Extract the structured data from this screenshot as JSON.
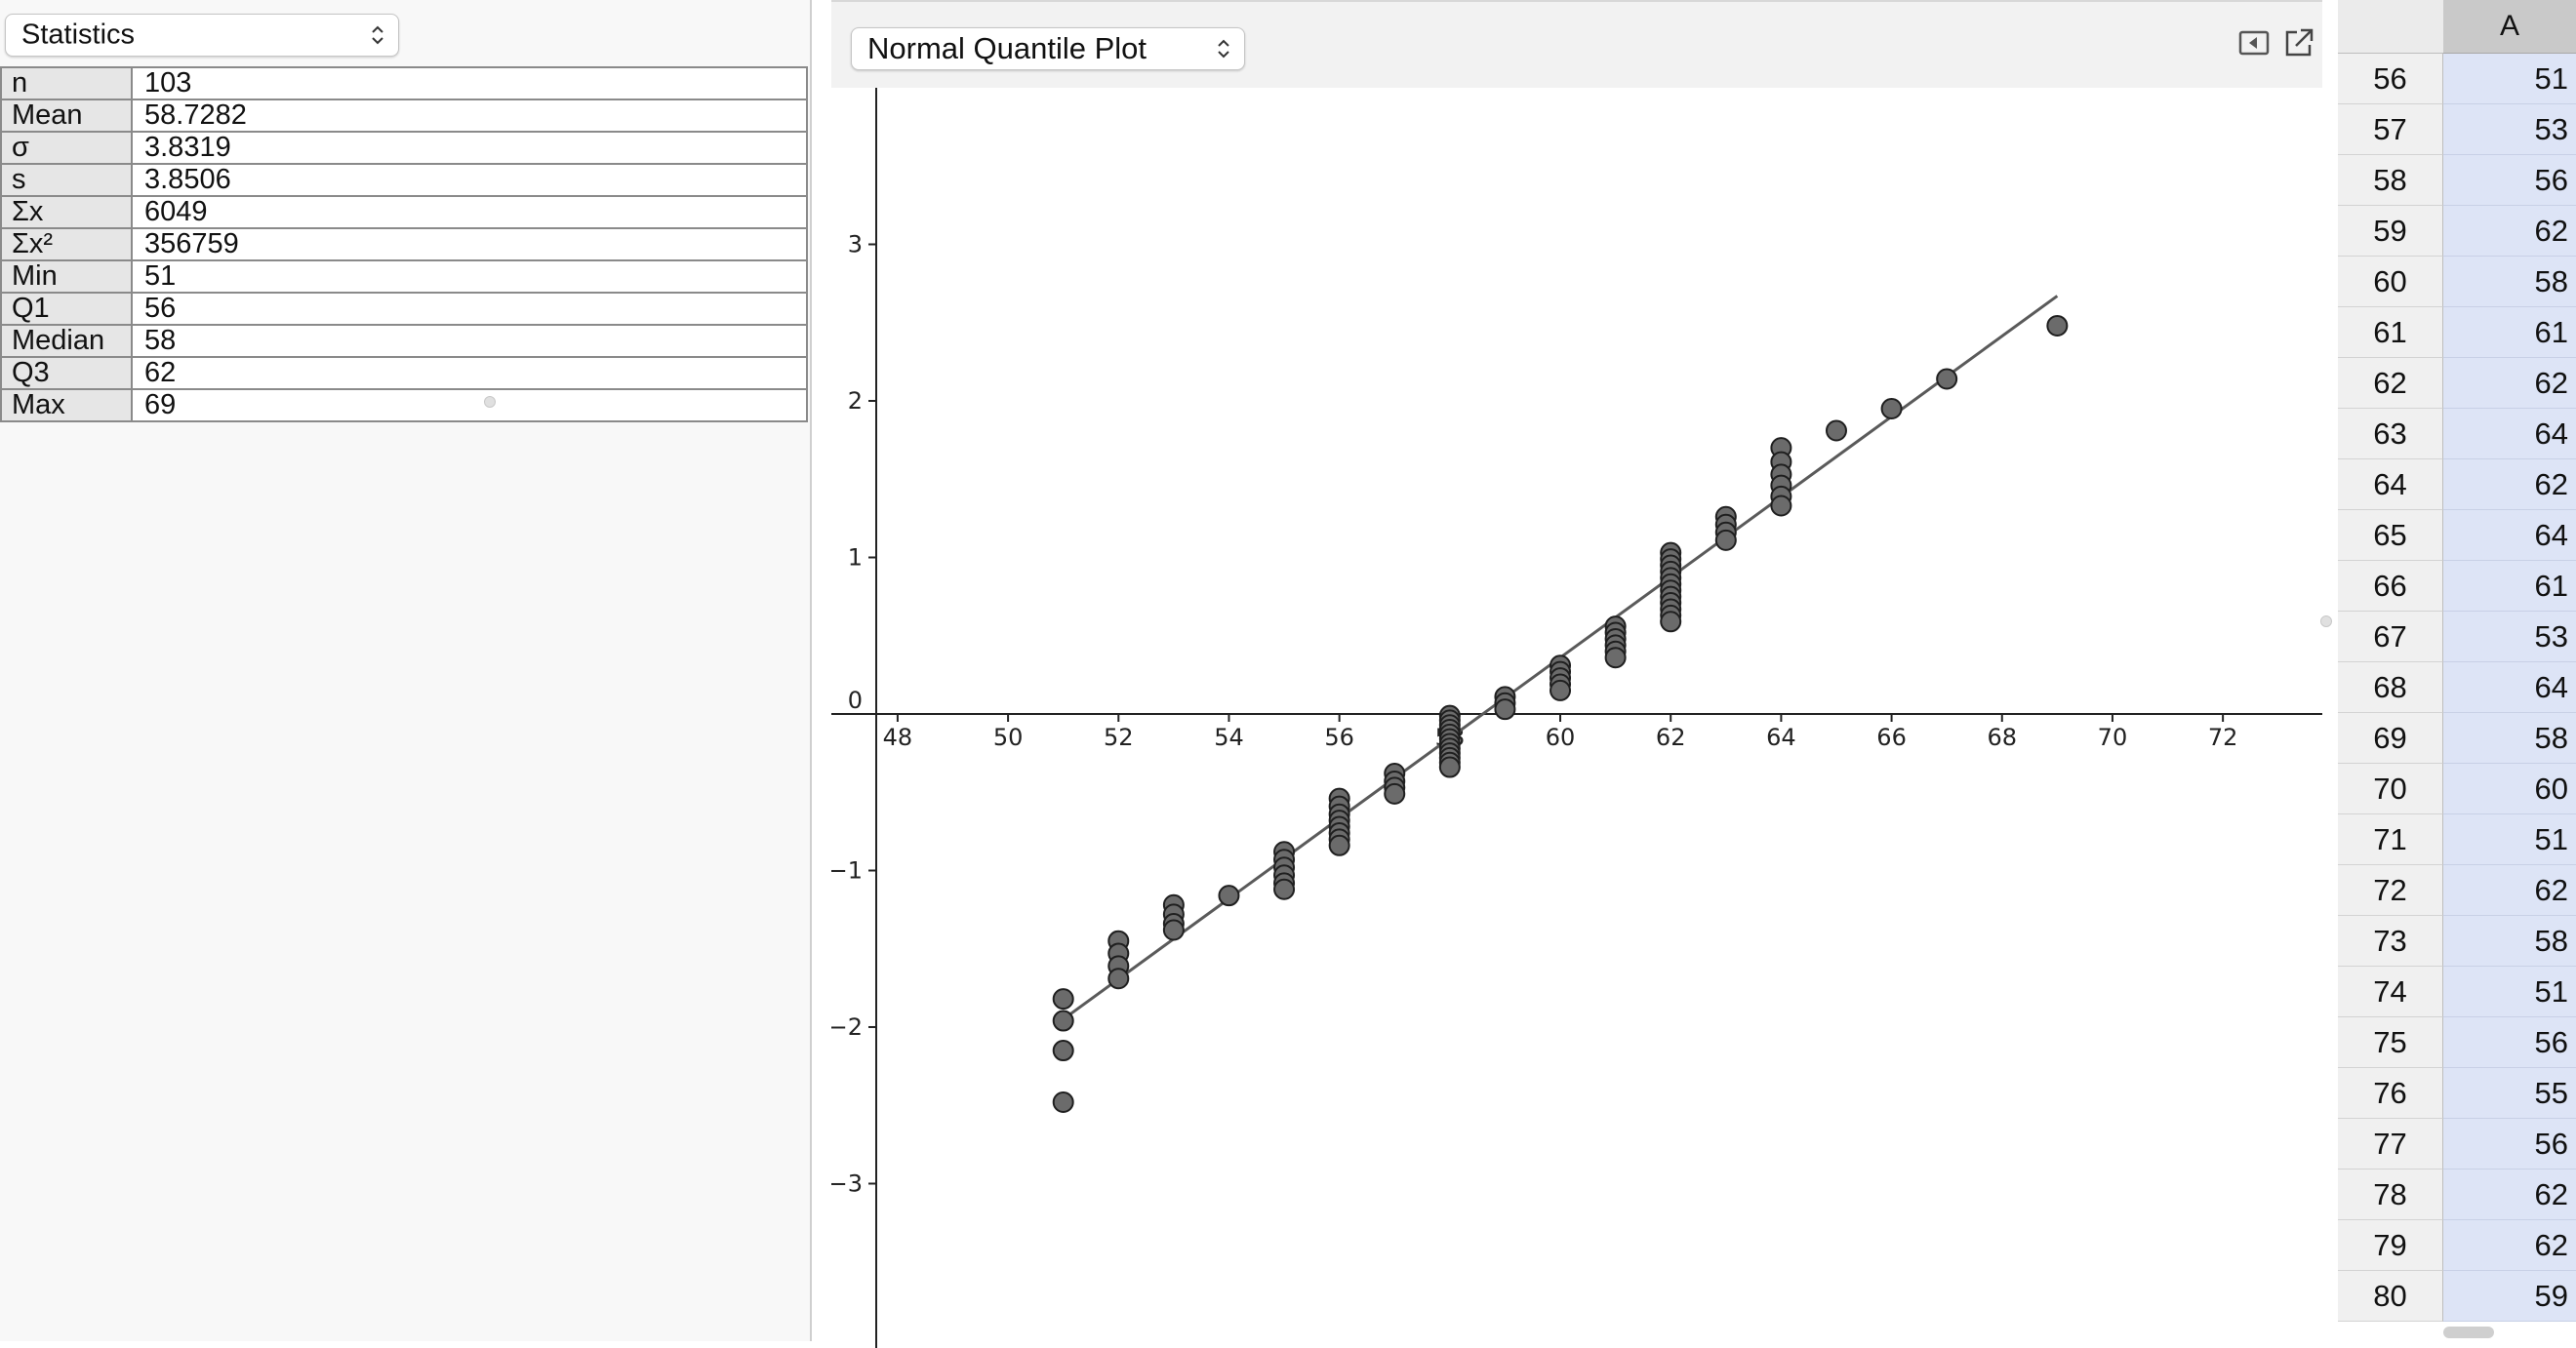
{
  "statistics_panel": {
    "mode_select": "Statistics",
    "rows": [
      {
        "label": "n",
        "value": "103"
      },
      {
        "label": "Mean",
        "value": "58.7282"
      },
      {
        "label": "σ",
        "value": "3.8319"
      },
      {
        "label": "s",
        "value": "3.8506"
      },
      {
        "label": "Σx",
        "value": "6049"
      },
      {
        "label": "Σx²",
        "value": "356759"
      },
      {
        "label": "Min",
        "value": "51"
      },
      {
        "label": "Q1",
        "value": "56"
      },
      {
        "label": "Median",
        "value": "58"
      },
      {
        "label": "Q3",
        "value": "62"
      },
      {
        "label": "Max",
        "value": "69"
      }
    ]
  },
  "graphics_panel": {
    "plot_select": "Normal Quantile Plot",
    "icons": [
      "collapse-panel-icon",
      "export-window-icon"
    ]
  },
  "chart_data": {
    "type": "scatter",
    "title": "",
    "xlabel": "",
    "ylabel": "",
    "xlim": [
      46.8,
      73.8
    ],
    "ylim": [
      -4.05,
      4.0
    ],
    "x_ticks": [
      48,
      50,
      52,
      54,
      56,
      58,
      60,
      62,
      64,
      66,
      68,
      70,
      72
    ],
    "y_ticks": [
      -3,
      -2,
      -1,
      0,
      1,
      2,
      3
    ],
    "grid": false,
    "fit_line": {
      "x": [
        51,
        69
      ],
      "y": [
        -1.95,
        2.67
      ]
    },
    "points": [
      {
        "x": 51,
        "y": -1.82
      },
      {
        "x": 51,
        "y": -1.96
      },
      {
        "x": 51,
        "y": -2.15
      },
      {
        "x": 51,
        "y": -2.48
      },
      {
        "x": 52,
        "y": -1.45
      },
      {
        "x": 52,
        "y": -1.53
      },
      {
        "x": 52,
        "y": -1.61
      },
      {
        "x": 52,
        "y": -1.69
      },
      {
        "x": 53,
        "y": -1.22
      },
      {
        "x": 53,
        "y": -1.28
      },
      {
        "x": 53,
        "y": -1.34
      },
      {
        "x": 53,
        "y": -1.38
      },
      {
        "x": 54,
        "y": -1.16
      },
      {
        "x": 55,
        "y": -0.88
      },
      {
        "x": 55,
        "y": -0.93
      },
      {
        "x": 55,
        "y": -0.98
      },
      {
        "x": 55,
        "y": -1.03
      },
      {
        "x": 55,
        "y": -1.08
      },
      {
        "x": 55,
        "y": -1.12
      },
      {
        "x": 56,
        "y": -0.54
      },
      {
        "x": 56,
        "y": -0.59
      },
      {
        "x": 56,
        "y": -0.64
      },
      {
        "x": 56,
        "y": -0.68
      },
      {
        "x": 56,
        "y": -0.72
      },
      {
        "x": 56,
        "y": -0.76
      },
      {
        "x": 56,
        "y": -0.8
      },
      {
        "x": 56,
        "y": -0.84
      },
      {
        "x": 57,
        "y": -0.38
      },
      {
        "x": 57,
        "y": -0.43
      },
      {
        "x": 57,
        "y": -0.47
      },
      {
        "x": 57,
        "y": -0.51
      },
      {
        "x": 58,
        "y": -0.01
      },
      {
        "x": 58,
        "y": -0.04
      },
      {
        "x": 58,
        "y": -0.07
      },
      {
        "x": 58,
        "y": -0.1
      },
      {
        "x": 58,
        "y": -0.13
      },
      {
        "x": 58,
        "y": -0.16
      },
      {
        "x": 58,
        "y": -0.19
      },
      {
        "x": 58,
        "y": -0.22
      },
      {
        "x": 58,
        "y": -0.25
      },
      {
        "x": 58,
        "y": -0.28
      },
      {
        "x": 58,
        "y": -0.31
      },
      {
        "x": 58,
        "y": -0.34
      },
      {
        "x": 59,
        "y": 0.11
      },
      {
        "x": 59,
        "y": 0.07
      },
      {
        "x": 59,
        "y": 0.03
      },
      {
        "x": 60,
        "y": 0.31
      },
      {
        "x": 60,
        "y": 0.27
      },
      {
        "x": 60,
        "y": 0.23
      },
      {
        "x": 60,
        "y": 0.19
      },
      {
        "x": 60,
        "y": 0.15
      },
      {
        "x": 61,
        "y": 0.56
      },
      {
        "x": 61,
        "y": 0.52
      },
      {
        "x": 61,
        "y": 0.48
      },
      {
        "x": 61,
        "y": 0.44
      },
      {
        "x": 61,
        "y": 0.4
      },
      {
        "x": 61,
        "y": 0.36
      },
      {
        "x": 62,
        "y": 1.03
      },
      {
        "x": 62,
        "y": 0.99
      },
      {
        "x": 62,
        "y": 0.95
      },
      {
        "x": 62,
        "y": 0.91
      },
      {
        "x": 62,
        "y": 0.87
      },
      {
        "x": 62,
        "y": 0.83
      },
      {
        "x": 62,
        "y": 0.79
      },
      {
        "x": 62,
        "y": 0.75
      },
      {
        "x": 62,
        "y": 0.71
      },
      {
        "x": 62,
        "y": 0.67
      },
      {
        "x": 62,
        "y": 0.63
      },
      {
        "x": 62,
        "y": 0.59
      },
      {
        "x": 63,
        "y": 1.26
      },
      {
        "x": 63,
        "y": 1.21
      },
      {
        "x": 63,
        "y": 1.16
      },
      {
        "x": 63,
        "y": 1.11
      },
      {
        "x": 64,
        "y": 1.7
      },
      {
        "x": 64,
        "y": 1.61
      },
      {
        "x": 64,
        "y": 1.53
      },
      {
        "x": 64,
        "y": 1.46
      },
      {
        "x": 64,
        "y": 1.39
      },
      {
        "x": 64,
        "y": 1.33
      },
      {
        "x": 65,
        "y": 1.81
      },
      {
        "x": 66,
        "y": 1.95
      },
      {
        "x": 67,
        "y": 2.14
      },
      {
        "x": 69,
        "y": 2.48
      }
    ]
  },
  "spreadsheet": {
    "column_header": "A",
    "rows": [
      {
        "row": "56",
        "value": "51"
      },
      {
        "row": "57",
        "value": "53"
      },
      {
        "row": "58",
        "value": "56"
      },
      {
        "row": "59",
        "value": "62"
      },
      {
        "row": "60",
        "value": "58"
      },
      {
        "row": "61",
        "value": "61"
      },
      {
        "row": "62",
        "value": "62"
      },
      {
        "row": "63",
        "value": "64"
      },
      {
        "row": "64",
        "value": "62"
      },
      {
        "row": "65",
        "value": "64"
      },
      {
        "row": "66",
        "value": "61"
      },
      {
        "row": "67",
        "value": "53"
      },
      {
        "row": "68",
        "value": "64"
      },
      {
        "row": "69",
        "value": "58"
      },
      {
        "row": "70",
        "value": "60"
      },
      {
        "row": "71",
        "value": "51"
      },
      {
        "row": "72",
        "value": "62"
      },
      {
        "row": "73",
        "value": "58"
      },
      {
        "row": "74",
        "value": "51"
      },
      {
        "row": "75",
        "value": "56"
      },
      {
        "row": "76",
        "value": "55"
      },
      {
        "row": "77",
        "value": "56"
      },
      {
        "row": "78",
        "value": "62"
      },
      {
        "row": "79",
        "value": "62"
      },
      {
        "row": "80",
        "value": "59"
      }
    ]
  },
  "colors": {
    "point_fill": "#6b6b6b",
    "point_stroke": "#1f1f1f",
    "line": "#5a5a5a",
    "axis": "#222222",
    "cell_selected": "#dde4f6"
  }
}
